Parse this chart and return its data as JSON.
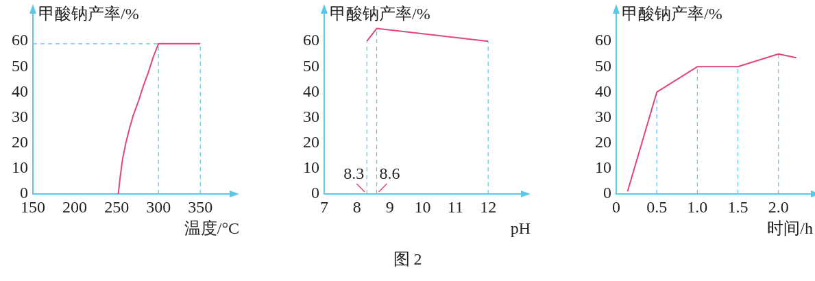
{
  "chart_data": [
    {
      "type": "line",
      "ylabel": "甲酸钠产率/%",
      "xlabel": "温度/°C",
      "marker": "none",
      "line_style": "solid",
      "legend": false,
      "xlim": [
        150,
        385
      ],
      "xticks": [
        150,
        200,
        250,
        300,
        350
      ],
      "ylim": [
        0,
        70
      ],
      "yticks": [
        0,
        10,
        20,
        30,
        40,
        50,
        60
      ],
      "series": [
        {
          "color": "#e0457b",
          "x": [
            252,
            254,
            257,
            261,
            265.6,
            270,
            276.7,
            282,
            287.6,
            294,
            300,
            350
          ],
          "values": [
            0,
            6,
            13.5,
            20,
            26,
            31,
            37,
            42.5,
            47.5,
            54,
            59,
            59
          ]
        }
      ],
      "ref_lines": [
        {
          "axis": "y",
          "value": 59,
          "color": "#5bc8e8",
          "line_style": "dashed"
        },
        {
          "axis": "x",
          "value": 300,
          "color": "#5bc8e8",
          "line_style": "dashed"
        },
        {
          "axis": "x",
          "value": 350,
          "color": "#5bc8e8",
          "line_style": "dashed"
        }
      ]
    },
    {
      "type": "line",
      "ylabel": "甲酸钠产率/%",
      "xlabel": "pH",
      "marker": "none",
      "line_style": "solid",
      "legend": false,
      "xlim": [
        7,
        13
      ],
      "xticks": [
        7,
        8,
        9,
        10,
        11,
        12
      ],
      "ylim": [
        0,
        70
      ],
      "yticks": [
        0,
        10,
        20,
        30,
        40,
        50,
        60
      ],
      "series": [
        {
          "color": "#e0457b",
          "x": [
            8.3,
            8.6,
            12
          ],
          "values": [
            60,
            65,
            60
          ]
        }
      ],
      "ref_lines": [
        {
          "axis": "x",
          "value": 8.3,
          "color": "#5bc8e8",
          "line_style": "dashed"
        },
        {
          "axis": "x",
          "value": 8.6,
          "color": "#5bc8e8",
          "line_style": "dashed"
        },
        {
          "axis": "x",
          "value": 12,
          "color": "#5bc8e8",
          "line_style": "dashed"
        }
      ],
      "annotations": [
        {
          "text": "8.3",
          "x": 8.3,
          "y": 0
        },
        {
          "text": "8.6",
          "x": 8.6,
          "y": 0
        },
        "图 2"
      ]
    },
    {
      "type": "line",
      "ylabel": "甲酸钠产率/%",
      "xlabel": "时间/h",
      "marker": "none",
      "line_style": "solid",
      "legend": false,
      "xlim": [
        0,
        2.4
      ],
      "xticks": [
        0,
        0.5,
        {
          "value": 1,
          "label": "1.0"
        },
        1.5,
        {
          "value": 2,
          "label": "2.0"
        }
      ],
      "ylim": [
        0,
        70
      ],
      "yticks": [
        0,
        10,
        20,
        30,
        40,
        50,
        60
      ],
      "series": [
        {
          "color": "#e0457b",
          "x": [
            0.14,
            0.5,
            1,
            1.5,
            2,
            2.22
          ],
          "values": [
            1,
            40,
            50,
            50,
            55,
            53.5
          ]
        }
      ],
      "ref_lines": [
        {
          "axis": "x",
          "value": 0.5,
          "color": "#5bc8e8",
          "line_style": "dashed"
        },
        {
          "axis": "x",
          "value": 1,
          "color": "#5bc8e8",
          "line_style": "dashed"
        },
        {
          "axis": "x",
          "value": 1.5,
          "color": "#5bc8e8",
          "line_style": "dashed"
        },
        {
          "axis": "x",
          "value": 2,
          "color": "#5bc8e8",
          "line_style": "dashed"
        }
      ]
    }
  ]
}
